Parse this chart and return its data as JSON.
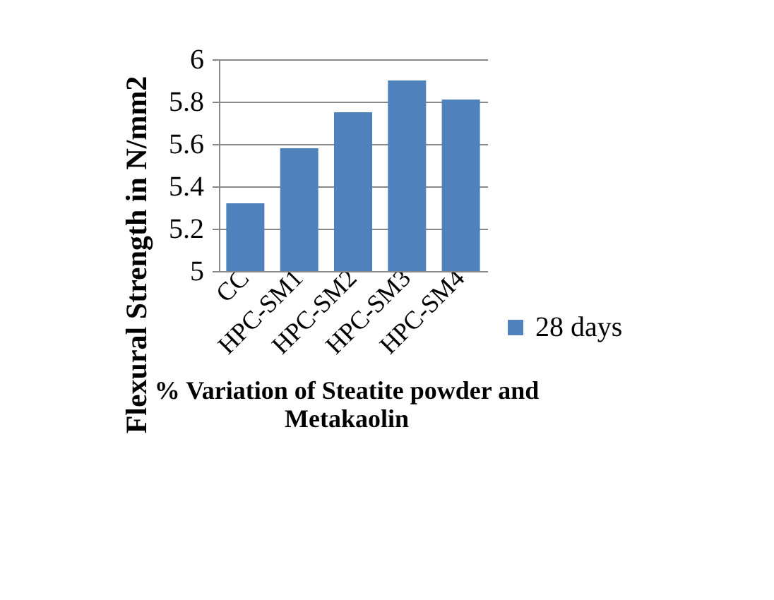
{
  "chart_data": {
    "type": "bar",
    "xlabel": "% Variation of Steatite powder and Metakaolin",
    "ylabel": "Flexural Strength in N/mm2",
    "categories": [
      "CC",
      "HPC-SM1",
      "HPC-SM2",
      "HPC-SM3",
      "HPC-SM4"
    ],
    "series": [
      {
        "name": "28 days",
        "color": "#4f81bd",
        "values": [
          5.32,
          5.58,
          5.75,
          5.9,
          5.81
        ]
      }
    ],
    "ylim": [
      5,
      6
    ],
    "yticks": [
      {
        "value": 5,
        "label": "5"
      },
      5.2,
      5.4,
      5.6,
      5.8,
      {
        "value": 6,
        "label": "6"
      }
    ],
    "grid": "y",
    "legend": "right"
  }
}
